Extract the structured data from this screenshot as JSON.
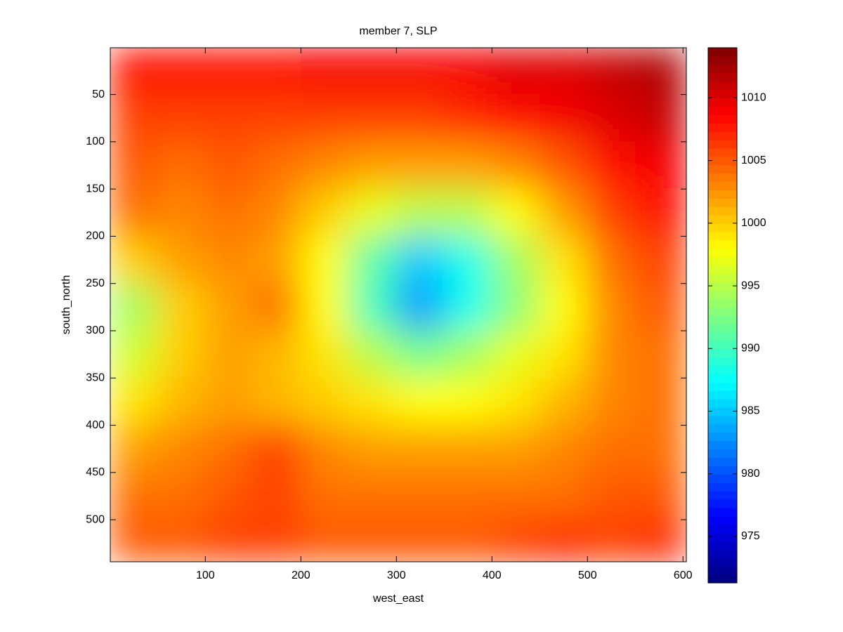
{
  "chart_data": {
    "type": "heatmap",
    "title": "member 7, SLP",
    "xlabel": "west_east",
    "ylabel": "south_north",
    "colormap": "jet",
    "y_reversed": true,
    "x": [
      25,
      75,
      125,
      175,
      225,
      275,
      325,
      375,
      425,
      475,
      525,
      575
    ],
    "y": [
      25,
      75,
      125,
      175,
      225,
      275,
      325,
      375,
      425,
      475,
      525
    ],
    "z": [
      [
        1008,
        1008,
        1008,
        1008,
        1009,
        1009,
        1009,
        1009,
        1010,
        1010,
        1011,
        1012
      ],
      [
        1006,
        1006,
        1006,
        1006,
        1006,
        1006,
        1006,
        1007,
        1008,
        1009,
        1010,
        1011
      ],
      [
        1005,
        1004,
        1005,
        1004,
        1003,
        1002,
        1002,
        1002,
        1003,
        1005,
        1008,
        1009
      ],
      [
        1004,
        1003,
        1004,
        1003,
        1000,
        997,
        995,
        995,
        998,
        1002,
        1006,
        1008
      ],
      [
        1000,
        1002,
        1003,
        1002,
        998,
        991,
        985,
        988,
        994,
        999,
        1004,
        1006
      ],
      [
        994,
        1000,
        1002,
        1004,
        998,
        990,
        983,
        988,
        993,
        998,
        1003,
        1005
      ],
      [
        996,
        1000,
        1002,
        1001,
        999,
        995,
        992,
        994,
        997,
        999,
        1003,
        1004
      ],
      [
        999,
        1001,
        1002,
        1001,
        1000,
        999,
        998,
        998,
        999,
        1001,
        1003,
        1004
      ],
      [
        1002,
        1003,
        1004,
        1006,
        1003,
        1002,
        1002,
        1002,
        1002,
        1003,
        1004,
        1004
      ],
      [
        1004,
        1004,
        1005,
        1006,
        1004,
        1004,
        1004,
        1004,
        1004,
        1004,
        1005,
        1005
      ],
      [
        1005,
        1005,
        1006,
        1006,
        1005,
        1005,
        1005,
        1005,
        1006,
        1007,
        1006,
        1007
      ]
    ],
    "xlim": [
      0.5,
      603.5
    ],
    "ylim": [
      0.5,
      544.5
    ],
    "xticks": [
      100,
      200,
      300,
      400,
      500,
      600
    ],
    "yticks": [
      50,
      100,
      150,
      200,
      250,
      300,
      350,
      400,
      450,
      500
    ],
    "clim": [
      971.3,
      1014
    ],
    "cticks": [
      975,
      980,
      985,
      990,
      995,
      1000,
      1005,
      1010
    ]
  }
}
